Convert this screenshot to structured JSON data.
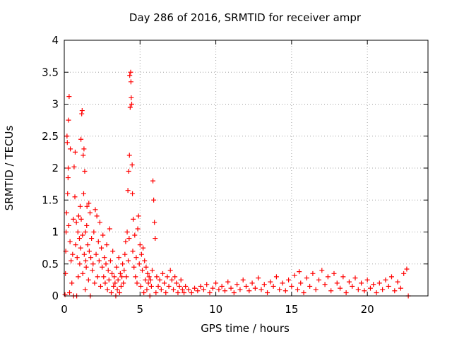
{
  "chart_data": {
    "type": "scatter",
    "title": "Day 286 of 2016, SRMTID for receiver ampr",
    "xlabel": "GPS time / hours",
    "ylabel": "SRMTID / TECUs",
    "xlim": [
      0,
      24
    ],
    "ylim": [
      0,
      4
    ],
    "xticks": [
      0,
      5,
      10,
      15,
      20
    ],
    "xtick_labels": [
      "0",
      "5",
      "10",
      "15",
      "20"
    ],
    "yticks": [
      0,
      0.5,
      1,
      1.5,
      2,
      2.5,
      3,
      3.5,
      4
    ],
    "ytick_labels": [
      "0",
      "0.5",
      "1",
      "1.5",
      "2",
      "2.5",
      "3",
      "3.5",
      "4"
    ],
    "grid": true,
    "marker": "plus",
    "series": [
      {
        "name": "SRMTID",
        "color": "#ff0000",
        "points": [
          [
            0.05,
            0.02
          ],
          [
            0.08,
            0.35
          ],
          [
            0.1,
            0.7
          ],
          [
            0.12,
            1.0
          ],
          [
            0.15,
            1.3
          ],
          [
            0.18,
            2.5
          ],
          [
            0.2,
            2.4
          ],
          [
            0.22,
            1.6
          ],
          [
            0.25,
            1.85
          ],
          [
            0.26,
            2.0
          ],
          [
            0.28,
            2.75
          ],
          [
            0.3,
            1.1
          ],
          [
            0.32,
            3.12
          ],
          [
            0.35,
            0.05
          ],
          [
            0.38,
            0.85
          ],
          [
            0.4,
            2.3
          ],
          [
            0.45,
            0.55
          ],
          [
            0.5,
            0.2
          ],
          [
            0.55,
            0.65
          ],
          [
            0.6,
            1.2
          ],
          [
            0.62,
            0.0
          ],
          [
            0.65,
            2.02
          ],
          [
            0.7,
            1.55
          ],
          [
            0.72,
            2.25
          ],
          [
            0.75,
            0.8
          ],
          [
            0.8,
            1.15
          ],
          [
            0.82,
            0.0
          ],
          [
            0.85,
            0.6
          ],
          [
            0.9,
            1.0
          ],
          [
            0.92,
            0.3
          ],
          [
            0.95,
            1.25
          ],
          [
            1.0,
            0.9
          ],
          [
            1.02,
            0.5
          ],
          [
            1.05,
            1.4
          ],
          [
            1.08,
            0.75
          ],
          [
            1.1,
            2.45
          ],
          [
            1.12,
            1.2
          ],
          [
            1.15,
            2.85
          ],
          [
            1.18,
            2.9
          ],
          [
            1.2,
            0.95
          ],
          [
            1.22,
            0.35
          ],
          [
            1.25,
            2.2
          ],
          [
            1.28,
            1.6
          ],
          [
            1.3,
            2.3
          ],
          [
            1.32,
            0.65
          ],
          [
            1.35,
            1.95
          ],
          [
            1.38,
            0.1
          ],
          [
            1.4,
            1.0
          ],
          [
            1.42,
            0.55
          ],
          [
            1.45,
            0.45
          ],
          [
            1.48,
            1.1
          ],
          [
            1.5,
            1.4
          ],
          [
            1.55,
            0.8
          ],
          [
            1.6,
            0.25
          ],
          [
            1.62,
            1.45
          ],
          [
            1.65,
            0.7
          ],
          [
            1.7,
            1.3
          ],
          [
            1.72,
            0.0
          ],
          [
            1.75,
            0.6
          ],
          [
            1.8,
            0.9
          ],
          [
            1.85,
            0.4
          ],
          [
            1.9,
            0.5
          ],
          [
            1.95,
            1.0
          ],
          [
            2.0,
            0.2
          ],
          [
            2.05,
            1.35
          ],
          [
            2.1,
            0.65
          ],
          [
            2.15,
            1.25
          ],
          [
            2.2,
            0.3
          ],
          [
            2.25,
            0.85
          ],
          [
            2.3,
            0.55
          ],
          [
            2.35,
            1.15
          ],
          [
            2.4,
            0.15
          ],
          [
            2.45,
            0.75
          ],
          [
            2.5,
            0.45
          ],
          [
            2.55,
            0.95
          ],
          [
            2.6,
            0.3
          ],
          [
            2.65,
            0.6
          ],
          [
            2.7,
            0.2
          ],
          [
            2.75,
            0.5
          ],
          [
            2.8,
            0.8
          ],
          [
            2.85,
            0.1
          ],
          [
            2.9,
            0.4
          ],
          [
            2.95,
            0.25
          ],
          [
            3.0,
            1.05
          ],
          [
            3.05,
            0.55
          ],
          [
            3.1,
            0.05
          ],
          [
            3.15,
            0.35
          ],
          [
            3.2,
            0.7
          ],
          [
            3.25,
            0.15
          ],
          [
            3.3,
            0.3
          ],
          [
            3.35,
            0.2
          ],
          [
            3.4,
            0.0
          ],
          [
            3.45,
            0.45
          ],
          [
            3.5,
            0.1
          ],
          [
            3.55,
            0.25
          ],
          [
            3.6,
            0.6
          ],
          [
            3.65,
            0.05
          ],
          [
            3.7,
            0.35
          ],
          [
            3.75,
            0.15
          ],
          [
            3.8,
            0.3
          ],
          [
            3.85,
            0.5
          ],
          [
            3.9,
            0.2
          ],
          [
            3.95,
            0.4
          ],
          [
            4.0,
            0.65
          ],
          [
            4.05,
            0.85
          ],
          [
            4.1,
            0.3
          ],
          [
            4.15,
            1.0
          ],
          [
            4.2,
            1.65
          ],
          [
            4.22,
            0.55
          ],
          [
            4.25,
            1.95
          ],
          [
            4.28,
            0.9
          ],
          [
            4.3,
            2.2
          ],
          [
            4.32,
            3.45
          ],
          [
            4.35,
            2.95
          ],
          [
            4.38,
            3.5
          ],
          [
            4.4,
            3.35
          ],
          [
            4.42,
            3.1
          ],
          [
            4.45,
            3.0
          ],
          [
            4.48,
            2.05
          ],
          [
            4.5,
            1.6
          ],
          [
            4.52,
            0.7
          ],
          [
            4.55,
            1.2
          ],
          [
            4.6,
            0.45
          ],
          [
            4.65,
            0.95
          ],
          [
            4.7,
            0.3
          ],
          [
            4.75,
            0.6
          ],
          [
            4.8,
            0.2
          ],
          [
            4.85,
            1.05
          ],
          [
            4.9,
            1.25
          ],
          [
            4.95,
            0.5
          ],
          [
            5.0,
            0.8
          ],
          [
            5.05,
            0.15
          ],
          [
            5.1,
            0.65
          ],
          [
            5.15,
            0.4
          ],
          [
            5.2,
            0.75
          ],
          [
            5.25,
            0.05
          ],
          [
            5.3,
            0.55
          ],
          [
            5.35,
            0.25
          ],
          [
            5.4,
            0.45
          ],
          [
            5.45,
            0.1
          ],
          [
            5.5,
            0.35
          ],
          [
            5.55,
            0.2
          ],
          [
            5.6,
            0.3
          ],
          [
            5.65,
            0.0
          ],
          [
            5.7,
            0.25
          ],
          [
            5.75,
            0.15
          ],
          [
            5.8,
            0.4
          ],
          [
            5.85,
            1.8
          ],
          [
            5.9,
            1.5
          ],
          [
            5.95,
            1.15
          ],
          [
            6.0,
            0.9
          ],
          [
            6.05,
            0.05
          ],
          [
            6.1,
            0.3
          ],
          [
            6.2,
            0.15
          ],
          [
            6.3,
            0.25
          ],
          [
            6.4,
            0.1
          ],
          [
            6.5,
            0.35
          ],
          [
            6.6,
            0.2
          ],
          [
            6.7,
            0.05
          ],
          [
            6.8,
            0.3
          ],
          [
            6.9,
            0.15
          ],
          [
            7.0,
            0.4
          ],
          [
            7.1,
            0.25
          ],
          [
            7.2,
            0.1
          ],
          [
            7.3,
            0.3
          ],
          [
            7.4,
            0.2
          ],
          [
            7.5,
            0.05
          ],
          [
            7.6,
            0.15
          ],
          [
            7.7,
            0.25
          ],
          [
            7.8,
            0.1
          ],
          [
            7.9,
            0.05
          ],
          [
            8.0,
            0.15
          ],
          [
            8.2,
            0.1
          ],
          [
            8.4,
            0.05
          ],
          [
            8.6,
            0.12
          ],
          [
            8.8,
            0.08
          ],
          [
            9.0,
            0.15
          ],
          [
            9.2,
            0.1
          ],
          [
            9.4,
            0.18
          ],
          [
            9.6,
            0.05
          ],
          [
            9.8,
            0.12
          ],
          [
            10.0,
            0.2
          ],
          [
            10.2,
            0.1
          ],
          [
            10.4,
            0.15
          ],
          [
            10.6,
            0.08
          ],
          [
            10.8,
            0.22
          ],
          [
            11.0,
            0.12
          ],
          [
            11.2,
            0.05
          ],
          [
            11.4,
            0.18
          ],
          [
            11.6,
            0.1
          ],
          [
            11.8,
            0.25
          ],
          [
            12.0,
            0.15
          ],
          [
            12.2,
            0.08
          ],
          [
            12.4,
            0.2
          ],
          [
            12.6,
            0.12
          ],
          [
            12.8,
            0.28
          ],
          [
            13.0,
            0.1
          ],
          [
            13.2,
            0.18
          ],
          [
            13.4,
            0.05
          ],
          [
            13.6,
            0.22
          ],
          [
            13.8,
            0.15
          ],
          [
            14.0,
            0.3
          ],
          [
            14.2,
            0.1
          ],
          [
            14.4,
            0.2
          ],
          [
            14.6,
            0.08
          ],
          [
            14.8,
            0.25
          ],
          [
            15.0,
            0.15
          ],
          [
            15.2,
            0.32
          ],
          [
            15.4,
            0.1
          ],
          [
            15.5,
            0.38
          ],
          [
            15.6,
            0.2
          ],
          [
            15.8,
            0.05
          ],
          [
            16.0,
            0.28
          ],
          [
            16.2,
            0.15
          ],
          [
            16.4,
            0.35
          ],
          [
            16.6,
            0.1
          ],
          [
            16.8,
            0.25
          ],
          [
            17.0,
            0.4
          ],
          [
            17.2,
            0.18
          ],
          [
            17.4,
            0.3
          ],
          [
            17.6,
            0.08
          ],
          [
            17.8,
            0.35
          ],
          [
            18.0,
            0.2
          ],
          [
            18.2,
            0.12
          ],
          [
            18.4,
            0.3
          ],
          [
            18.6,
            0.05
          ],
          [
            18.8,
            0.22
          ],
          [
            19.0,
            0.15
          ],
          [
            19.2,
            0.28
          ],
          [
            19.4,
            0.1
          ],
          [
            19.6,
            0.2
          ],
          [
            19.8,
            0.08
          ],
          [
            20.0,
            0.25
          ],
          [
            20.2,
            0.12
          ],
          [
            20.4,
            0.18
          ],
          [
            20.6,
            0.05
          ],
          [
            20.8,
            0.2
          ],
          [
            21.0,
            0.1
          ],
          [
            21.2,
            0.25
          ],
          [
            21.4,
            0.15
          ],
          [
            21.6,
            0.3
          ],
          [
            21.8,
            0.08
          ],
          [
            22.0,
            0.22
          ],
          [
            22.2,
            0.12
          ],
          [
            22.4,
            0.35
          ],
          [
            22.6,
            0.42
          ],
          [
            22.7,
            0.0
          ]
        ]
      }
    ]
  }
}
